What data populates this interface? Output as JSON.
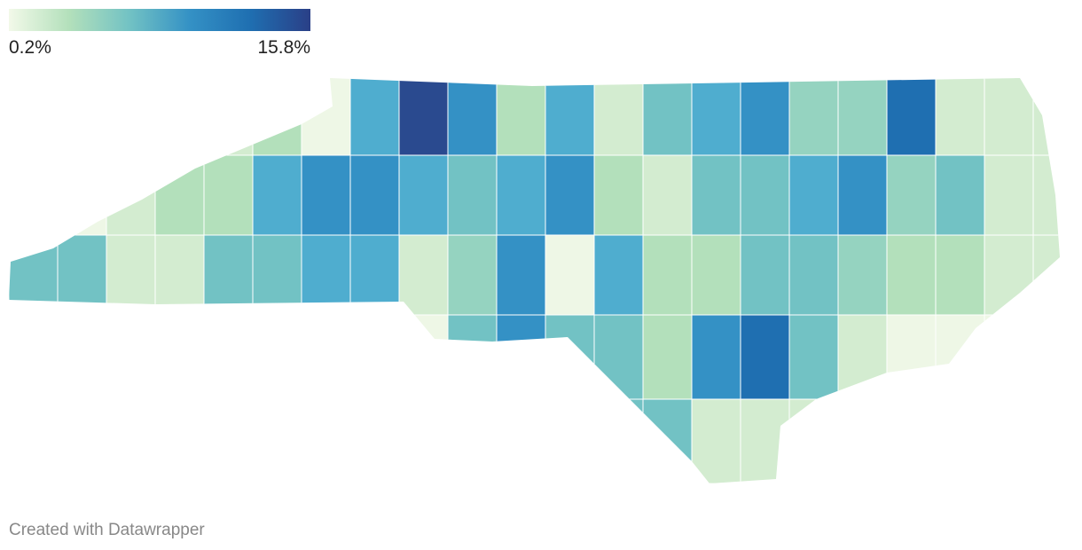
{
  "legend": {
    "min": {
      "value": 0.2,
      "label": "0.2%"
    },
    "max": {
      "value": 15.8,
      "label": "15.8%"
    },
    "colors": [
      "#f2f9e9",
      "#b3e0bb",
      "#72c2c4",
      "#3491c5",
      "#1f6fb1",
      "#2a3f87"
    ]
  },
  "footer": "Created with Datawrapper"
}
